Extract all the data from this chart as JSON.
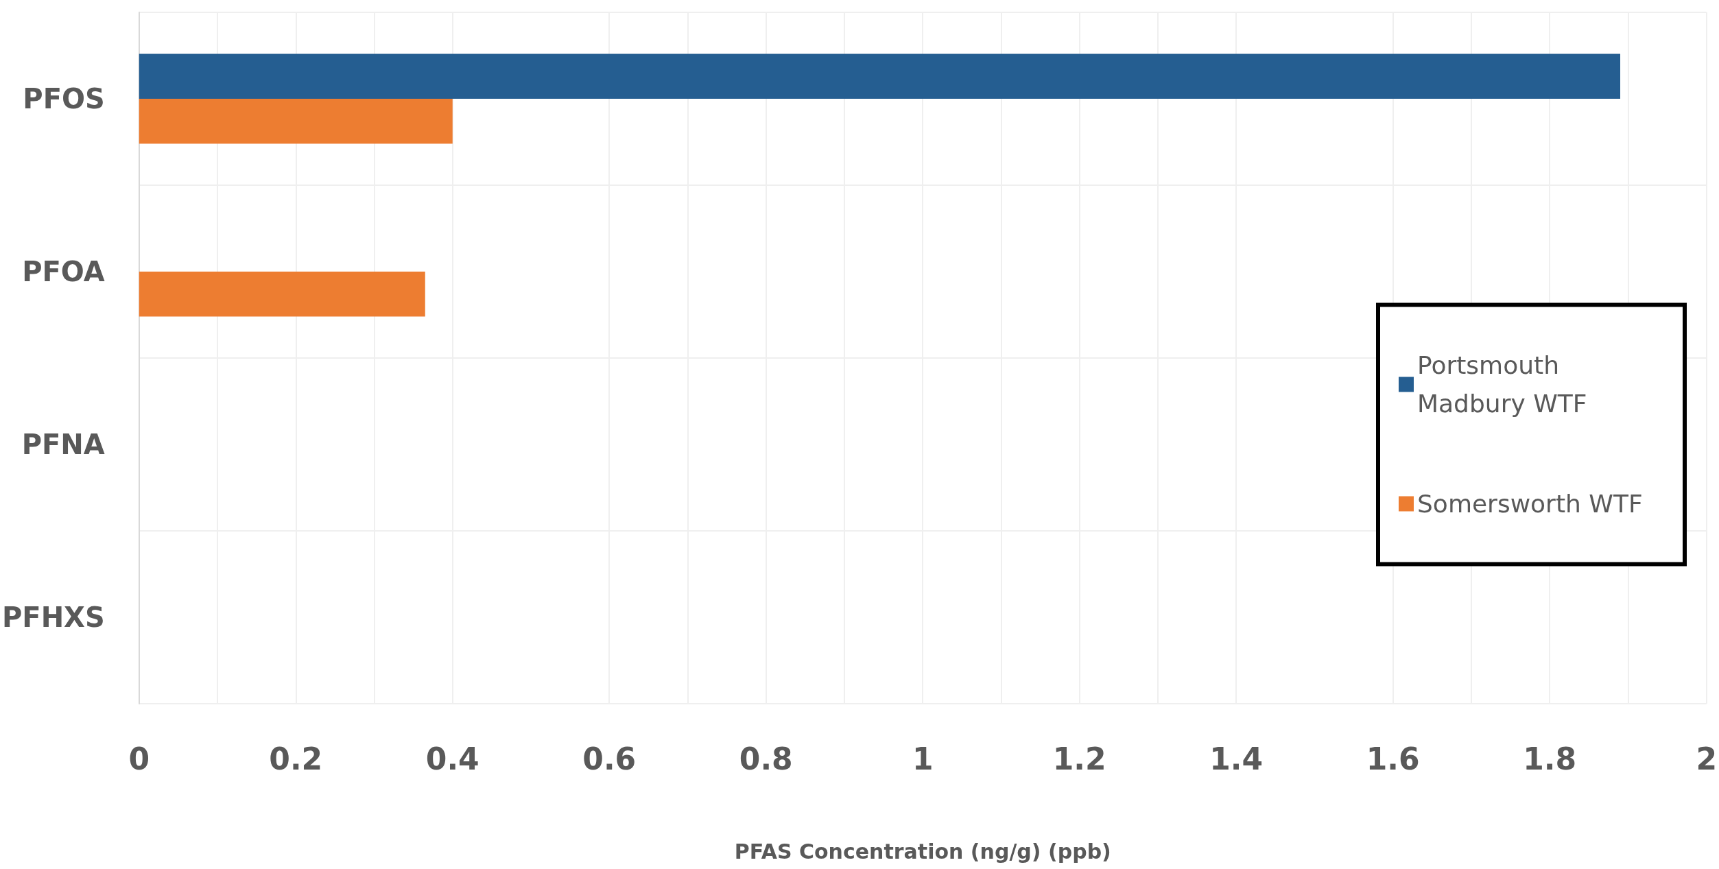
{
  "chart_data": {
    "type": "bar",
    "orientation": "horizontal",
    "xlabel": "PFAS Concentration (ng/g) (ppb)",
    "categories": [
      "PFOS",
      "PFOA",
      "PFNA",
      "PFHXS"
    ],
    "series": [
      {
        "name": "Portsmouth Madbury WTF",
        "color": "#255e91",
        "values": [
          1.89,
          null,
          null,
          null
        ]
      },
      {
        "name": "Somersworth WTF",
        "color": "#ed7d31",
        "values": [
          0.4,
          0.365,
          null,
          null
        ]
      }
    ],
    "xlim": [
      0,
      2
    ],
    "xticks": [
      0,
      0.2,
      0.4,
      0.6,
      0.8,
      1,
      1.2,
      1.4,
      1.6,
      1.8,
      2
    ],
    "grid": true,
    "legend": "right"
  }
}
